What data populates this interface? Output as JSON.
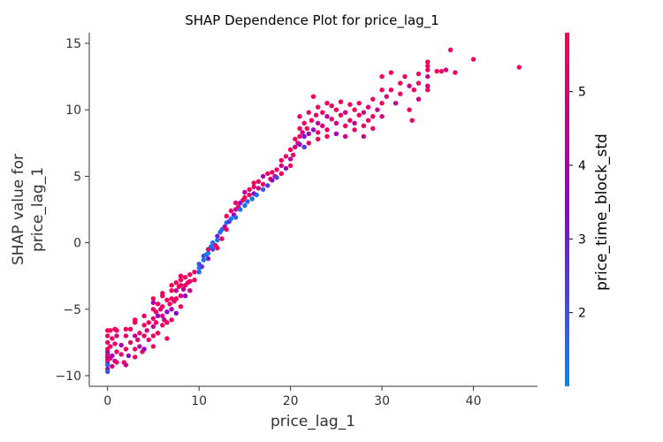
{
  "chart_data": {
    "type": "scatter",
    "title": "SHAP Dependence Plot for price_lag_1",
    "xlabel": "price_lag_1",
    "ylabel_lines": [
      "SHAP value for",
      "price_lag_1"
    ],
    "xlim": [
      -2,
      47
    ],
    "ylim": [
      -10.8,
      15.8
    ],
    "xticks": [
      0,
      10,
      20,
      30,
      40
    ],
    "yticks": [
      -10,
      -5,
      0,
      5,
      10,
      15
    ],
    "ytick_labels": [
      "−10",
      "−5",
      "0",
      "5",
      "10",
      "15"
    ],
    "grid": false,
    "colorbar": {
      "label": "price_time_block_std",
      "min": 1.0,
      "max": 5.8,
      "ticks": [
        2,
        3,
        4,
        5
      ],
      "color_low": "#008afb",
      "color_mid": "#8f00cf",
      "color_high": "#ff0052"
    },
    "points": [
      [
        0,
        -9.2,
        1.5
      ],
      [
        0,
        -9.0,
        2.2
      ],
      [
        0,
        -8.8,
        5.5
      ],
      [
        0,
        -8.6,
        4.2
      ],
      [
        0,
        -8.4,
        5.6
      ],
      [
        0,
        -8.2,
        3.0
      ],
      [
        0,
        -8.0,
        5.5
      ],
      [
        0,
        -7.5,
        5.4
      ],
      [
        0,
        -7.0,
        5.6
      ],
      [
        0,
        -6.6,
        5.5
      ],
      [
        0,
        -9.5,
        4.0
      ],
      [
        0,
        -9.7,
        1.8
      ],
      [
        0.3,
        -8.7,
        5.2
      ],
      [
        0.3,
        -7.8,
        5.5
      ],
      [
        0.3,
        -6.6,
        5.6
      ],
      [
        0.5,
        -8.5,
        3.8
      ],
      [
        0.5,
        -7.2,
        5.5
      ],
      [
        0.5,
        -9.3,
        5.0
      ],
      [
        0.8,
        -8.9,
        4.5
      ],
      [
        0.8,
        -7.6,
        5.4
      ],
      [
        0.8,
        -6.5,
        5.6
      ],
      [
        1,
        -8.2,
        5.5
      ],
      [
        1,
        -7.0,
        4.8
      ],
      [
        1,
        -9.0,
        5.5
      ],
      [
        1,
        -6.6,
        5.5
      ],
      [
        1.5,
        -8.4,
        5.3
      ],
      [
        1.5,
        -7.7,
        4.0
      ],
      [
        1.8,
        -9.0,
        5.5
      ],
      [
        2,
        -8.0,
        5.5
      ],
      [
        2,
        -7.0,
        5.4
      ],
      [
        2,
        -6.5,
        5.6
      ],
      [
        2,
        -9.2,
        4.5
      ],
      [
        2.3,
        -8.5,
        3.5
      ],
      [
        2.5,
        -7.5,
        5.5
      ],
      [
        2.5,
        -6.5,
        5.2
      ],
      [
        3,
        -8.0,
        5.6
      ],
      [
        3,
        -7.0,
        4.5
      ],
      [
        3,
        -6.0,
        5.5
      ],
      [
        3,
        -5.8,
        5.6
      ],
      [
        3,
        -8.6,
        5.5
      ],
      [
        3.3,
        -7.3,
        5.0
      ],
      [
        3.5,
        -7.8,
        4.2
      ],
      [
        3.5,
        -6.8,
        5.5
      ],
      [
        3.8,
        -8.2,
        5.5
      ],
      [
        4,
        -7.0,
        5.5
      ],
      [
        4,
        -6.2,
        5.6
      ],
      [
        4,
        -5.5,
        5.5
      ],
      [
        4,
        -8.0,
        3.5
      ],
      [
        4.3,
        -6.6,
        4.8
      ],
      [
        4.5,
        -7.3,
        5.4
      ],
      [
        4.5,
        -6.0,
        5.5
      ],
      [
        5,
        -4.2,
        5.6
      ],
      [
        5,
        -5.0,
        5.5
      ],
      [
        5,
        -5.7,
        5.2
      ],
      [
        5,
        -6.3,
        4.5
      ],
      [
        5,
        -7.0,
        5.5
      ],
      [
        5,
        -7.8,
        5.6
      ],
      [
        5,
        -4.5,
        4.0
      ],
      [
        5.3,
        -5.2,
        5.5
      ],
      [
        5.3,
        -6.0,
        5.6
      ],
      [
        5.5,
        -4.6,
        5.5
      ],
      [
        5.5,
        -5.5,
        3.8
      ],
      [
        5.5,
        -6.8,
        5.5
      ],
      [
        5.8,
        -5.0,
        5.4
      ],
      [
        6,
        -4.0,
        5.6
      ],
      [
        6,
        -4.8,
        5.5
      ],
      [
        6,
        -5.5,
        5.0
      ],
      [
        6,
        -6.2,
        5.5
      ],
      [
        6,
        -3.8,
        5.5
      ],
      [
        6.2,
        -5.8,
        4.5
      ],
      [
        6.5,
        -4.3,
        5.5
      ],
      [
        6.5,
        -5.2,
        3.2
      ],
      [
        6.5,
        -6.0,
        5.6
      ],
      [
        6.5,
        -7.2,
        5.5
      ],
      [
        6.8,
        -4.6,
        5.5
      ],
      [
        7,
        -3.6,
        5.6
      ],
      [
        7,
        -4.2,
        5.4
      ],
      [
        7,
        -5.0,
        4.0
      ],
      [
        7,
        -5.8,
        5.5
      ],
      [
        7,
        -3.2,
        5.6
      ],
      [
        7.3,
        -4.4,
        5.5
      ],
      [
        7.5,
        -3.0,
        5.5
      ],
      [
        7.5,
        -3.6,
        4.5
      ],
      [
        7.5,
        -4.2,
        5.6
      ],
      [
        7.5,
        -5.3,
        3.5
      ],
      [
        7.8,
        -3.3,
        5.5
      ],
      [
        8,
        -2.8,
        5.6
      ],
      [
        8,
        -3.2,
        5.5
      ],
      [
        8,
        -4.0,
        5.0
      ],
      [
        8,
        -4.8,
        5.5
      ],
      [
        8,
        -2.5,
        5.4
      ],
      [
        8.3,
        -3.5,
        4.2
      ],
      [
        8.5,
        -2.6,
        5.5
      ],
      [
        8.5,
        -3.2,
        5.6
      ],
      [
        8.5,
        -4.0,
        3.5
      ],
      [
        8.8,
        -3.0,
        5.5
      ],
      [
        9,
        -2.4,
        5.5
      ],
      [
        9,
        -2.9,
        5.2
      ],
      [
        9,
        -3.6,
        4.8
      ],
      [
        9.5,
        -2.2,
        5.5
      ],
      [
        9.5,
        -2.8,
        5.6
      ],
      [
        10,
        -2.2,
        1.5
      ],
      [
        10,
        -1.9,
        1.2
      ],
      [
        10,
        -1.6,
        1.8
      ],
      [
        10.3,
        -1.8,
        2.5
      ],
      [
        10.5,
        -1.3,
        1.3
      ],
      [
        10.5,
        -1.0,
        2.0
      ],
      [
        10.8,
        -0.9,
        1.5
      ],
      [
        11,
        -0.8,
        1.2
      ],
      [
        11,
        -0.5,
        5.5
      ],
      [
        11,
        -1.2,
        3.0
      ],
      [
        11.3,
        -0.3,
        1.6
      ],
      [
        11.5,
        -0.5,
        2.2
      ],
      [
        11.5,
        0.0,
        1.4
      ],
      [
        11.8,
        -0.2,
        5.5
      ],
      [
        12,
        0.2,
        1.3
      ],
      [
        12,
        0.5,
        2.8
      ],
      [
        12,
        -0.4,
        5.5
      ],
      [
        12.3,
        0.8,
        1.7
      ],
      [
        12.5,
        0.3,
        5.5
      ],
      [
        12.5,
        1.0,
        1.4
      ],
      [
        12.8,
        1.2,
        4.0
      ],
      [
        13,
        1.0,
        5.5
      ],
      [
        13,
        1.5,
        1.5
      ],
      [
        13,
        2.0,
        5.6
      ],
      [
        13.3,
        1.6,
        2.5
      ],
      [
        13.5,
        1.8,
        1.3
      ],
      [
        13.5,
        2.4,
        5.5
      ],
      [
        13.8,
        2.1,
        3.5
      ],
      [
        14,
        1.9,
        1.6
      ],
      [
        14,
        2.5,
        4.5
      ],
      [
        14,
        3.0,
        5.5
      ],
      [
        14.3,
        2.7,
        5.6
      ],
      [
        14.5,
        2.5,
        1.4
      ],
      [
        14.5,
        3.0,
        3.0
      ],
      [
        14.8,
        3.2,
        5.5
      ],
      [
        15,
        2.8,
        1.5
      ],
      [
        15,
        3.4,
        5.5
      ],
      [
        15,
        3.8,
        4.2
      ],
      [
        15.3,
        3.1,
        1.7
      ],
      [
        15.5,
        3.6,
        5.6
      ],
      [
        15.5,
        4.0,
        5.5
      ],
      [
        15.8,
        3.3,
        1.4
      ],
      [
        16,
        3.7,
        3.2
      ],
      [
        16,
        4.2,
        5.5
      ],
      [
        16,
        4.5,
        5.6
      ],
      [
        16.3,
        3.6,
        1.5
      ],
      [
        16.5,
        4.1,
        4.8
      ],
      [
        16.5,
        4.6,
        5.5
      ],
      [
        17,
        4.0,
        1.8
      ],
      [
        17,
        4.4,
        5.5
      ],
      [
        17,
        5.0,
        4.0
      ],
      [
        17.5,
        4.3,
        2.5
      ],
      [
        17.5,
        5.2,
        5.6
      ],
      [
        17.8,
        4.8,
        5.5
      ],
      [
        18,
        4.7,
        3.5
      ],
      [
        18,
        5.3,
        5.5
      ],
      [
        18.3,
        5.0,
        4.5
      ],
      [
        18.5,
        5.5,
        5.5
      ],
      [
        18.5,
        4.9,
        2.2
      ],
      [
        19,
        5.2,
        5.5
      ],
      [
        19,
        5.8,
        4.8
      ],
      [
        19,
        6.2,
        5.6
      ],
      [
        19.5,
        5.6,
        3.8
      ],
      [
        19.5,
        6.5,
        5.5
      ],
      [
        20,
        5.8,
        5.5
      ],
      [
        20,
        6.3,
        4.2
      ],
      [
        20,
        7.0,
        5.6
      ],
      [
        20.3,
        6.6,
        5.5
      ],
      [
        20.5,
        7.2,
        4.8
      ],
      [
        20.5,
        7.8,
        5.5
      ],
      [
        20.8,
        7.5,
        5.5
      ],
      [
        21,
        8.0,
        5.6
      ],
      [
        21,
        8.6,
        5.5
      ],
      [
        21,
        7.4,
        3.5
      ],
      [
        21,
        9.5,
        5.5
      ],
      [
        21.3,
        8.3,
        4.8
      ],
      [
        21.5,
        8.0,
        3.0
      ],
      [
        21.5,
        9.0,
        5.5
      ],
      [
        21.5,
        7.2,
        2.5
      ],
      [
        21.8,
        8.6,
        5.6
      ],
      [
        22,
        9.8,
        5.5
      ],
      [
        22,
        8.2,
        4.0
      ],
      [
        22,
        7.5,
        5.5
      ],
      [
        22.3,
        9.2,
        5.5
      ],
      [
        22.5,
        8.5,
        3.5
      ],
      [
        22.5,
        11.0,
        5.5
      ],
      [
        22.8,
        9.6,
        5.4
      ],
      [
        23,
        8.3,
        5.5
      ],
      [
        23,
        9.0,
        4.5
      ],
      [
        23,
        10.2,
        5.6
      ],
      [
        23,
        7.8,
        5.5
      ],
      [
        23.5,
        8.8,
        5.0
      ],
      [
        23.5,
        9.8,
        5.5
      ],
      [
        24,
        8.5,
        5.5
      ],
      [
        24,
        9.5,
        4.2
      ],
      [
        24,
        10.5,
        5.5
      ],
      [
        24,
        8.0,
        5.6
      ],
      [
        24.5,
        9.3,
        5.5
      ],
      [
        24.5,
        10.3,
        5.5
      ],
      [
        25,
        9.0,
        4.8
      ],
      [
        25,
        10.0,
        5.5
      ],
      [
        25,
        8.2,
        3.8
      ],
      [
        25.5,
        9.6,
        5.5
      ],
      [
        25.5,
        10.6,
        5.6
      ],
      [
        26,
        8.8,
        5.5
      ],
      [
        26,
        9.8,
        4.5
      ],
      [
        26,
        8.0,
        4.8
      ],
      [
        26.5,
        9.2,
        5.5
      ],
      [
        26.5,
        10.4,
        5.5
      ],
      [
        27,
        9.0,
        4.2
      ],
      [
        27,
        10.0,
        5.6
      ],
      [
        27,
        8.5,
        5.5
      ],
      [
        27.5,
        9.6,
        5.5
      ],
      [
        27.5,
        10.5,
        5.5
      ],
      [
        28,
        8.8,
        5.5
      ],
      [
        28,
        9.8,
        4.8
      ],
      [
        28,
        8.0,
        4.8
      ],
      [
        28.5,
        9.2,
        5.5
      ],
      [
        28.5,
        10.2,
        5.0
      ],
      [
        29,
        9.5,
        5.5
      ],
      [
        29,
        8.6,
        5.5
      ],
      [
        29,
        10.8,
        5.6
      ],
      [
        29.5,
        10.0,
        4.5
      ],
      [
        30,
        10.5,
        5.5
      ],
      [
        30,
        11.5,
        5.5
      ],
      [
        30,
        12.5,
        5.6
      ],
      [
        30,
        9.5,
        4.8
      ],
      [
        30.5,
        11.0,
        5.0
      ],
      [
        31,
        12.8,
        5.5
      ],
      [
        31,
        11.5,
        5.5
      ],
      [
        31.5,
        10.5,
        4.5
      ],
      [
        32,
        11.2,
        5.5
      ],
      [
        32,
        12.0,
        5.6
      ],
      [
        32.5,
        12.5,
        5.5
      ],
      [
        33,
        10.0,
        5.5
      ],
      [
        33,
        11.8,
        4.8
      ],
      [
        33.5,
        11.5,
        5.5
      ],
      [
        33.3,
        9.2,
        5.5
      ],
      [
        34,
        12.0,
        5.5
      ],
      [
        34,
        12.7,
        5.6
      ],
      [
        34,
        10.8,
        5.0
      ],
      [
        35,
        13.6,
        5.5
      ],
      [
        35,
        13.0,
        5.5
      ],
      [
        35,
        12.5,
        4.5
      ],
      [
        35,
        11.8,
        4.8
      ],
      [
        35,
        11.5,
        5.5
      ],
      [
        35,
        13.3,
        5.6
      ],
      [
        36,
        12.9,
        5.5
      ],
      [
        36.5,
        12.9,
        5.6
      ],
      [
        37,
        13.0,
        4.8
      ],
      [
        37.5,
        14.5,
        5.5
      ],
      [
        38,
        12.8,
        5.5
      ],
      [
        40,
        13.8,
        5.6
      ],
      [
        45,
        13.2,
        5.5
      ]
    ]
  }
}
